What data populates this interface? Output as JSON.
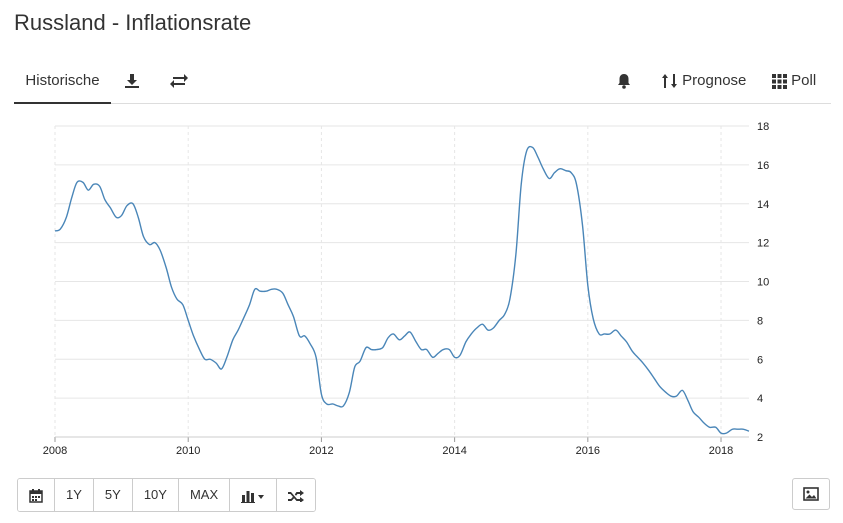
{
  "header": {
    "title": "Russland - Inflationsrate"
  },
  "tabs": {
    "active_label": "Historische",
    "download_icon": "download-icon",
    "compare_icon": "exchange-icon",
    "alert_icon": "bell-icon",
    "forecast_label": "Prognose",
    "poll_label": "Poll"
  },
  "toolbar": {
    "calendar_icon": "calendar-icon",
    "range_1y": "1Y",
    "range_5y": "5Y",
    "range_10y": "10Y",
    "range_max": "MAX",
    "chart_type_icon": "bar-chart-icon",
    "random_icon": "shuffle-icon",
    "image_icon": "image-icon"
  },
  "colors": {
    "line": "#4a86b8",
    "grid": "#e6e6e6",
    "axis_text": "#222222"
  },
  "chart_data": {
    "type": "line",
    "title": "",
    "xlabel": "",
    "ylabel": "",
    "xlim": [
      2008.0,
      2018.42
    ],
    "ylim": [
      2,
      18
    ],
    "x_ticks": [
      "2008",
      "2010",
      "2012",
      "2014",
      "2016",
      "2018"
    ],
    "y_ticks": [
      "2",
      "4",
      "6",
      "8",
      "10",
      "12",
      "14",
      "16",
      "18"
    ],
    "grid": true,
    "series": [
      {
        "name": "",
        "points": [
          [
            2008.0,
            12.6
          ],
          [
            2008.08,
            12.7
          ],
          [
            2008.17,
            13.3
          ],
          [
            2008.25,
            14.3
          ],
          [
            2008.33,
            15.1
          ],
          [
            2008.42,
            15.1
          ],
          [
            2008.5,
            14.7
          ],
          [
            2008.58,
            15.0
          ],
          [
            2008.67,
            14.9
          ],
          [
            2008.75,
            14.2
          ],
          [
            2008.83,
            13.8
          ],
          [
            2008.92,
            13.3
          ],
          [
            2009.0,
            13.4
          ],
          [
            2009.08,
            13.9
          ],
          [
            2009.17,
            14.0
          ],
          [
            2009.25,
            13.3
          ],
          [
            2009.33,
            12.3
          ],
          [
            2009.42,
            11.9
          ],
          [
            2009.5,
            12.0
          ],
          [
            2009.58,
            11.6
          ],
          [
            2009.67,
            10.7
          ],
          [
            2009.75,
            9.7
          ],
          [
            2009.83,
            9.1
          ],
          [
            2009.92,
            8.8
          ],
          [
            2010.0,
            8.0
          ],
          [
            2010.08,
            7.2
          ],
          [
            2010.17,
            6.5
          ],
          [
            2010.25,
            6.0
          ],
          [
            2010.33,
            6.0
          ],
          [
            2010.42,
            5.8
          ],
          [
            2010.5,
            5.5
          ],
          [
            2010.58,
            6.1
          ],
          [
            2010.67,
            7.0
          ],
          [
            2010.75,
            7.5
          ],
          [
            2010.83,
            8.1
          ],
          [
            2010.92,
            8.8
          ],
          [
            2011.0,
            9.6
          ],
          [
            2011.08,
            9.5
          ],
          [
            2011.17,
            9.5
          ],
          [
            2011.25,
            9.6
          ],
          [
            2011.33,
            9.6
          ],
          [
            2011.42,
            9.4
          ],
          [
            2011.5,
            8.8
          ],
          [
            2011.58,
            8.2
          ],
          [
            2011.67,
            7.2
          ],
          [
            2011.75,
            7.2
          ],
          [
            2011.83,
            6.8
          ],
          [
            2011.92,
            6.1
          ],
          [
            2012.0,
            4.2
          ],
          [
            2012.08,
            3.7
          ],
          [
            2012.17,
            3.7
          ],
          [
            2012.25,
            3.6
          ],
          [
            2012.33,
            3.6
          ],
          [
            2012.42,
            4.3
          ],
          [
            2012.5,
            5.6
          ],
          [
            2012.58,
            5.9
          ],
          [
            2012.67,
            6.6
          ],
          [
            2012.75,
            6.5
          ],
          [
            2012.83,
            6.5
          ],
          [
            2012.92,
            6.6
          ],
          [
            2013.0,
            7.1
          ],
          [
            2013.08,
            7.3
          ],
          [
            2013.17,
            7.0
          ],
          [
            2013.25,
            7.2
          ],
          [
            2013.33,
            7.4
          ],
          [
            2013.42,
            6.9
          ],
          [
            2013.5,
            6.5
          ],
          [
            2013.58,
            6.5
          ],
          [
            2013.67,
            6.1
          ],
          [
            2013.75,
            6.3
          ],
          [
            2013.83,
            6.5
          ],
          [
            2013.92,
            6.5
          ],
          [
            2014.0,
            6.1
          ],
          [
            2014.08,
            6.2
          ],
          [
            2014.17,
            6.9
          ],
          [
            2014.25,
            7.3
          ],
          [
            2014.33,
            7.6
          ],
          [
            2014.42,
            7.8
          ],
          [
            2014.5,
            7.5
          ],
          [
            2014.58,
            7.6
          ],
          [
            2014.67,
            8.0
          ],
          [
            2014.75,
            8.3
          ],
          [
            2014.83,
            9.1
          ],
          [
            2014.92,
            11.4
          ],
          [
            2015.0,
            15.0
          ],
          [
            2015.08,
            16.7
          ],
          [
            2015.17,
            16.9
          ],
          [
            2015.25,
            16.4
          ],
          [
            2015.33,
            15.8
          ],
          [
            2015.42,
            15.3
          ],
          [
            2015.5,
            15.6
          ],
          [
            2015.58,
            15.8
          ],
          [
            2015.67,
            15.7
          ],
          [
            2015.75,
            15.6
          ],
          [
            2015.83,
            15.0
          ],
          [
            2015.92,
            12.9
          ],
          [
            2016.0,
            9.8
          ],
          [
            2016.08,
            8.1
          ],
          [
            2016.17,
            7.3
          ],
          [
            2016.25,
            7.3
          ],
          [
            2016.33,
            7.3
          ],
          [
            2016.42,
            7.5
          ],
          [
            2016.5,
            7.2
          ],
          [
            2016.58,
            6.9
          ],
          [
            2016.67,
            6.4
          ],
          [
            2016.75,
            6.1
          ],
          [
            2016.83,
            5.8
          ],
          [
            2016.92,
            5.4
          ],
          [
            2017.0,
            5.0
          ],
          [
            2017.08,
            4.6
          ],
          [
            2017.17,
            4.3
          ],
          [
            2017.25,
            4.1
          ],
          [
            2017.33,
            4.1
          ],
          [
            2017.42,
            4.4
          ],
          [
            2017.5,
            3.9
          ],
          [
            2017.58,
            3.3
          ],
          [
            2017.67,
            3.0
          ],
          [
            2017.75,
            2.7
          ],
          [
            2017.83,
            2.5
          ],
          [
            2017.92,
            2.5
          ],
          [
            2018.0,
            2.2
          ],
          [
            2018.08,
            2.2
          ],
          [
            2018.17,
            2.4
          ],
          [
            2018.25,
            2.4
          ],
          [
            2018.33,
            2.4
          ],
          [
            2018.42,
            2.3
          ]
        ]
      }
    ]
  }
}
